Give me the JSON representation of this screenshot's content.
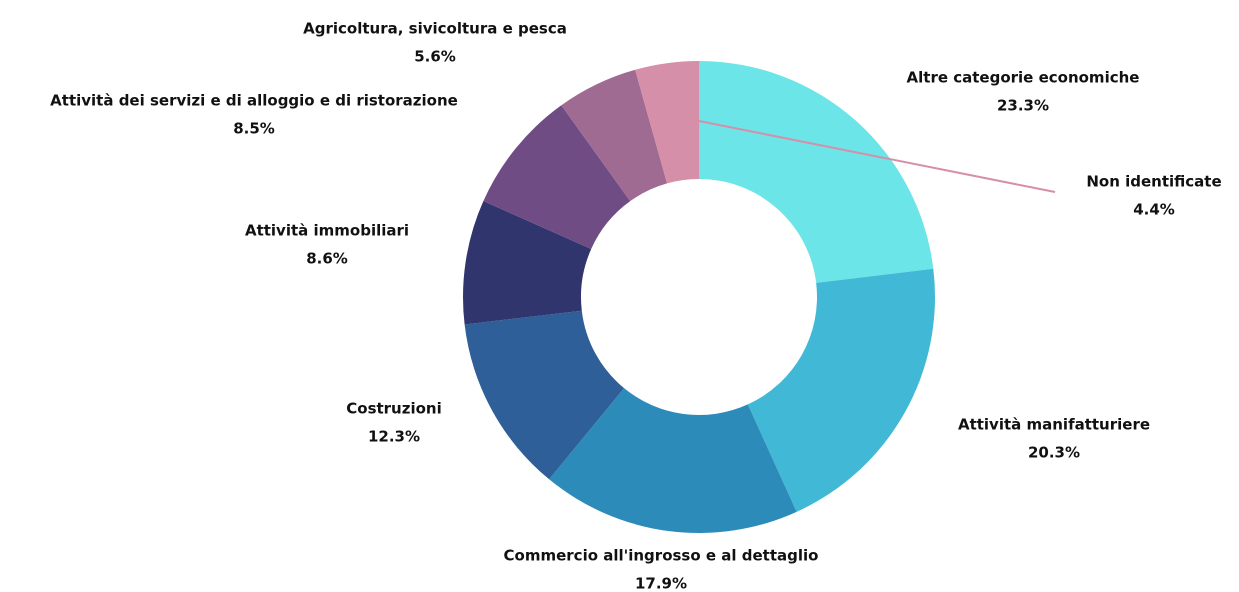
{
  "chart_data": {
    "type": "donut",
    "categories": [
      "Altre categorie economiche",
      "Attività manifatturiere",
      "Commercio all'ingrosso e al dettaglio",
      "Costruzioni",
      "Attività immobiliari",
      "Attività dei servizi e di alloggio e di ristorazione",
      "Agricoltura, sivicoltura e pesca",
      "Non identificate"
    ],
    "values": [
      23.3,
      20.3,
      17.9,
      12.3,
      8.6,
      8.5,
      5.6,
      4.4
    ],
    "value_labels": [
      "23.3%",
      "20.3%",
      "17.9%",
      "12.3%",
      "8.6%",
      "8.5%",
      "5.6%",
      "4.4%"
    ],
    "colors": [
      "#6ce5e8",
      "#41b8d5",
      "#2d8bba",
      "#2f5f98",
      "#31356e",
      "#704c84",
      "#a06b93",
      "#d68fa8"
    ]
  }
}
